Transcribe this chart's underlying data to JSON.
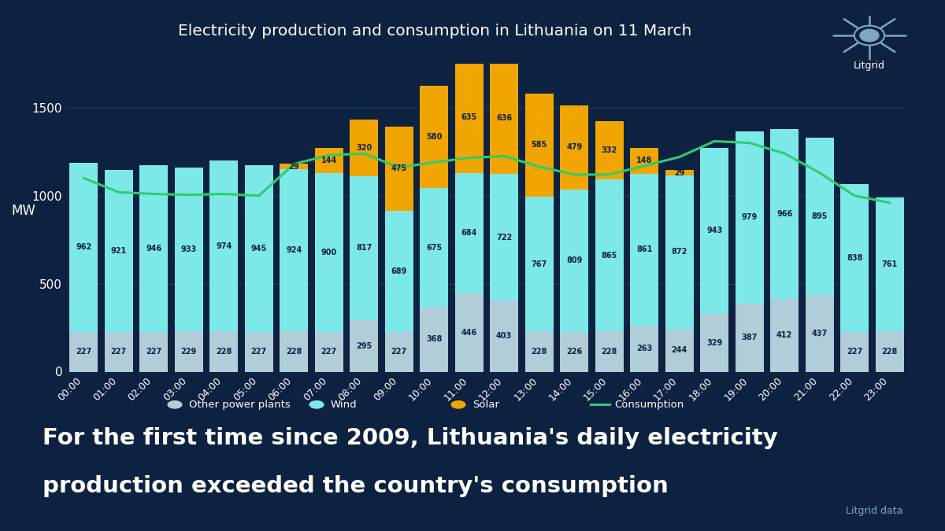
{
  "title": "Electricity production and consumption in Lithuania on 11 March",
  "hours": [
    "00:00",
    "01:00",
    "02:00",
    "03:00",
    "04:00",
    "05:00",
    "06:00",
    "07:00",
    "08:00",
    "09:00",
    "10:00",
    "11:00",
    "12:00",
    "13:00",
    "14:00",
    "15:00",
    "16:00",
    "17:00",
    "18:00",
    "19:00",
    "20:00",
    "21:00",
    "22:00",
    "23:00"
  ],
  "other": [
    227,
    227,
    227,
    229,
    228,
    227,
    228,
    227,
    295,
    227,
    368,
    446,
    403,
    228,
    226,
    228,
    263,
    244,
    329,
    387,
    412,
    437,
    227,
    228
  ],
  "wind": [
    962,
    921,
    946,
    933,
    974,
    945,
    924,
    900,
    817,
    689,
    675,
    684,
    722,
    767,
    809,
    865,
    861,
    872,
    943,
    979,
    966,
    895,
    838,
    761
  ],
  "solar": [
    0,
    0,
    0,
    0,
    0,
    0,
    29,
    144,
    320,
    475,
    580,
    635,
    636,
    585,
    479,
    332,
    148,
    29,
    0,
    0,
    0,
    0,
    0,
    0
  ],
  "consumption": [
    1100,
    1020,
    1010,
    1005,
    1010,
    1000,
    1180,
    1230,
    1240,
    1160,
    1190,
    1215,
    1225,
    1165,
    1120,
    1120,
    1170,
    1220,
    1310,
    1300,
    1240,
    1130,
    1000,
    960
  ],
  "bg_color": "#0d2240",
  "bar_other_color": "#b0cdd8",
  "bar_wind_color": "#7de8e8",
  "bar_solar_color": "#f0a500",
  "consumption_line_color": "#2ecc71",
  "text_color": "#ffffff",
  "grid_color": "#1e3d5c",
  "ylabel": "MW",
  "ylim": [
    0,
    1750
  ],
  "yticks": [
    0,
    500,
    1000,
    1500
  ],
  "subtitle_line1": "For the first time since 2009, Lithuania's daily electricity",
  "subtitle_line2": "production exceeded the country's consumption",
  "source_text": "Litgrid data",
  "legend_items": [
    "Other power plants",
    "Wind",
    "Solar",
    "Consumption"
  ],
  "logo_color": "#7da8c0",
  "logo_text": "Litgrid"
}
